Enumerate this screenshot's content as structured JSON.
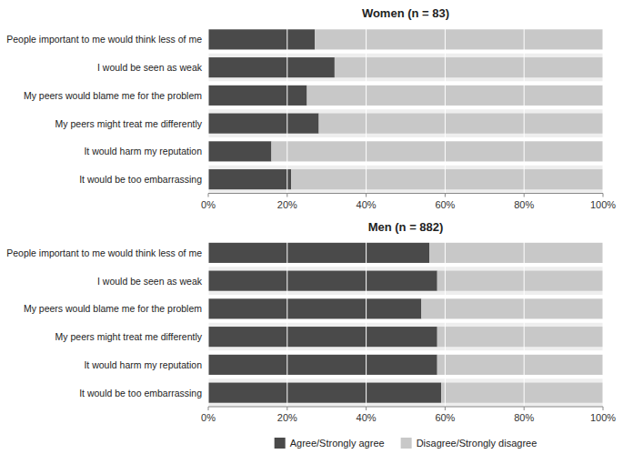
{
  "chart_data": [
    {
      "type": "bar",
      "title": "Women (n = 83)",
      "orientation": "horizontal",
      "stacked": true,
      "categories": [
        "People important to me would think less of me",
        "I would be seen as weak",
        "My peers would blame me for the problem",
        "My peers might treat me differently",
        "It would harm my reputation",
        "It would be too embarrassing"
      ],
      "series": [
        {
          "name": "Agree/Strongly agree",
          "color": "#4a4a4a",
          "values": [
            27,
            32,
            25,
            28,
            16,
            21
          ]
        },
        {
          "name": "Disagree/Strongly disagree",
          "color": "#c8c8c8",
          "values": [
            73,
            68,
            75,
            72,
            84,
            79
          ]
        }
      ],
      "xlim": [
        0,
        100
      ],
      "xticks": [
        {
          "value": 0,
          "label": "0%"
        },
        {
          "value": 20,
          "label": "20%"
        },
        {
          "value": 40,
          "label": "40%"
        },
        {
          "value": 60,
          "label": "60%"
        },
        {
          "value": 80,
          "label": "80%"
        },
        {
          "value": 100,
          "label": "100%"
        }
      ],
      "grid": true,
      "legend": "bottom"
    },
    {
      "type": "bar",
      "title": "Men (n = 882)",
      "orientation": "horizontal",
      "stacked": true,
      "categories": [
        "People important to me would think less of me",
        "I would be seen as weak",
        "My peers would blame me for the problem",
        "My peers might treat me differently",
        "It would harm my reputation",
        "It would be too embarrassing"
      ],
      "series": [
        {
          "color": "#4a4a4a",
          "values": [
            56,
            58,
            54,
            58,
            58,
            59
          ]
        },
        {
          "color": "#c8c8c8",
          "values": [
            44,
            42,
            46,
            42,
            42,
            41
          ]
        }
      ],
      "xlim": [
        0,
        100
      ],
      "xticks": [
        {
          "value": 0,
          "label": "0%"
        },
        {
          "value": 20,
          "label": "20%"
        },
        {
          "value": 40,
          "label": "40%"
        },
        {
          "value": 60,
          "label": "60%"
        },
        {
          "value": 80,
          "label": "80%"
        },
        {
          "value": 100,
          "label": "100%"
        }
      ],
      "grid": true
    }
  ]
}
